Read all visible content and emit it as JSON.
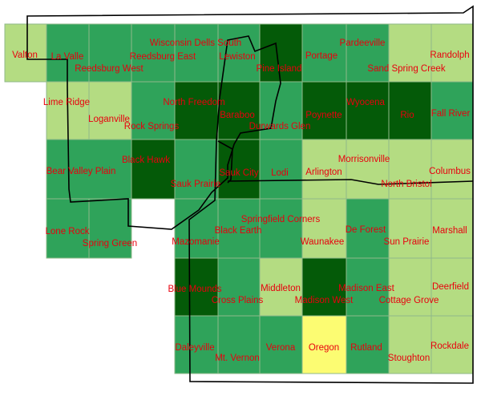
{
  "colors": {
    "light": "#b4dc82",
    "medium": "#2fa35a",
    "dark": "#045a08",
    "highlight": "#fcfc72",
    "tile_border": "#8fb98a",
    "county_line": "#000000",
    "label": "#e8000e"
  },
  "quads": [
    {
      "name": "Valton",
      "level": "light"
    },
    {
      "name": "La Valle",
      "level": "medium"
    },
    {
      "name": "Reedsburg West",
      "level": "medium"
    },
    {
      "name": "Reedsburg East",
      "level": "medium"
    },
    {
      "name": "Wisconsin Dells South",
      "level": "medium"
    },
    {
      "name": "Lewiston",
      "level": "medium"
    },
    {
      "name": "Pine Island",
      "level": "dark"
    },
    {
      "name": "Portage",
      "level": "medium"
    },
    {
      "name": "Pardeeville",
      "level": "medium"
    },
    {
      "name": "Sand Spring Creek",
      "level": "light"
    },
    {
      "name": "Randolph",
      "level": "light"
    },
    {
      "name": "Lime Ridge",
      "level": "light"
    },
    {
      "name": "Loganville",
      "level": "light"
    },
    {
      "name": "Rock Springs",
      "level": "medium"
    },
    {
      "name": "North Freedom",
      "level": "dark"
    },
    {
      "name": "Baraboo",
      "level": "dark"
    },
    {
      "name": "Durwards Glen",
      "level": "medium"
    },
    {
      "name": "Poynette",
      "level": "dark"
    },
    {
      "name": "Wyocena",
      "level": "dark"
    },
    {
      "name": "Rio",
      "level": "dark"
    },
    {
      "name": "Fall River",
      "level": "medium"
    },
    {
      "name": "Bear Valley Plain",
      "level": "medium"
    },
    {
      "name": "Black Hawk",
      "level": "dark"
    },
    {
      "name": "Sauk Prairie",
      "level": "medium"
    },
    {
      "name": "Sauk City",
      "level": "dark"
    },
    {
      "name": "Lodi",
      "level": "medium"
    },
    {
      "name": "Arlington",
      "level": "light"
    },
    {
      "name": "Morrisonville",
      "level": "light"
    },
    {
      "name": "North Bristol",
      "level": "light"
    },
    {
      "name": "Columbus",
      "level": "light"
    },
    {
      "name": "Lone Rock",
      "level": "medium"
    },
    {
      "name": "Spring Green",
      "level": "medium"
    },
    {
      "name": "Mazomanie",
      "level": "medium"
    },
    {
      "name": "Black Earth",
      "level": "medium"
    },
    {
      "name": "Springfield Corners",
      "level": "medium"
    },
    {
      "name": "Waunakee",
      "level": "light"
    },
    {
      "name": "De Forest",
      "level": "medium"
    },
    {
      "name": "Sun Prairie",
      "level": "light"
    },
    {
      "name": "Marshall",
      "level": "light"
    },
    {
      "name": "Blue Mounds",
      "level": "dark"
    },
    {
      "name": "Cross Plains",
      "level": "medium"
    },
    {
      "name": "Middleton",
      "level": "light"
    },
    {
      "name": "Madison West",
      "level": "dark"
    },
    {
      "name": "Madison East",
      "level": "medium"
    },
    {
      "name": "Cottage Grove",
      "level": "light"
    },
    {
      "name": "Deerfield",
      "level": "light"
    },
    {
      "name": "Daleyville",
      "level": "medium"
    },
    {
      "name": "Mt. Vernon",
      "level": "medium"
    },
    {
      "name": "Verona",
      "level": "medium"
    },
    {
      "name": "Oregon",
      "level": "highlight"
    },
    {
      "name": "Rutland",
      "level": "medium"
    },
    {
      "name": "Stoughton",
      "level": "light"
    },
    {
      "name": "Rockdale",
      "level": "light"
    }
  ]
}
